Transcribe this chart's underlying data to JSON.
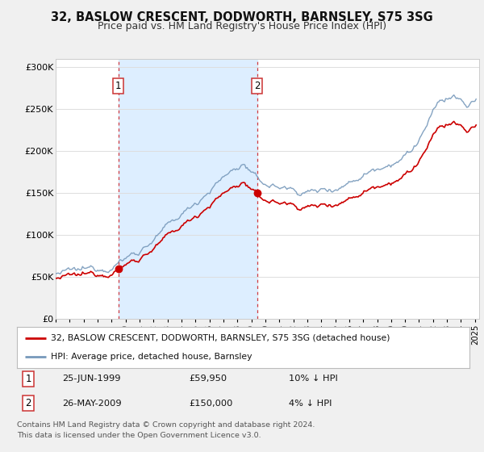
{
  "title": "32, BASLOW CRESCENT, DODWORTH, BARNSLEY, S75 3SG",
  "subtitle": "Price paid vs. HM Land Registry's House Price Index (HPI)",
  "title_fontsize": 10.5,
  "subtitle_fontsize": 9,
  "ylim": [
    0,
    310000
  ],
  "xlim_start": 1995.0,
  "xlim_end": 2025.3,
  "yticks": [
    0,
    50000,
    100000,
    150000,
    200000,
    250000,
    300000
  ],
  "ytick_labels": [
    "£0",
    "£50K",
    "£100K",
    "£150K",
    "£200K",
    "£250K",
    "£300K"
  ],
  "background_color": "#f0f0f0",
  "plot_bg_color": "#ffffff",
  "grid_color": "#dddddd",
  "shaded_region": [
    1999.48,
    2009.4
  ],
  "shaded_color": "#ddeeff",
  "sale1_x": 1999.48,
  "sale1_y": 59950,
  "sale1_label": "1",
  "sale1_date": "25-JUN-1999",
  "sale1_price": "£59,950",
  "sale1_hpi": "10% ↓ HPI",
  "sale2_x": 2009.4,
  "sale2_y": 150000,
  "sale2_label": "2",
  "sale2_date": "26-MAY-2009",
  "sale2_price": "£150,000",
  "sale2_hpi": "4% ↓ HPI",
  "red_line_color": "#cc0000",
  "blue_line_color": "#7799bb",
  "legend_label_red": "32, BASLOW CRESCENT, DODWORTH, BARNSLEY, S75 3SG (detached house)",
  "legend_label_blue": "HPI: Average price, detached house, Barnsley",
  "footer_line1": "Contains HM Land Registry data © Crown copyright and database right 2024.",
  "footer_line2": "This data is licensed under the Open Government Licence v3.0.",
  "marker_color": "#cc0000"
}
